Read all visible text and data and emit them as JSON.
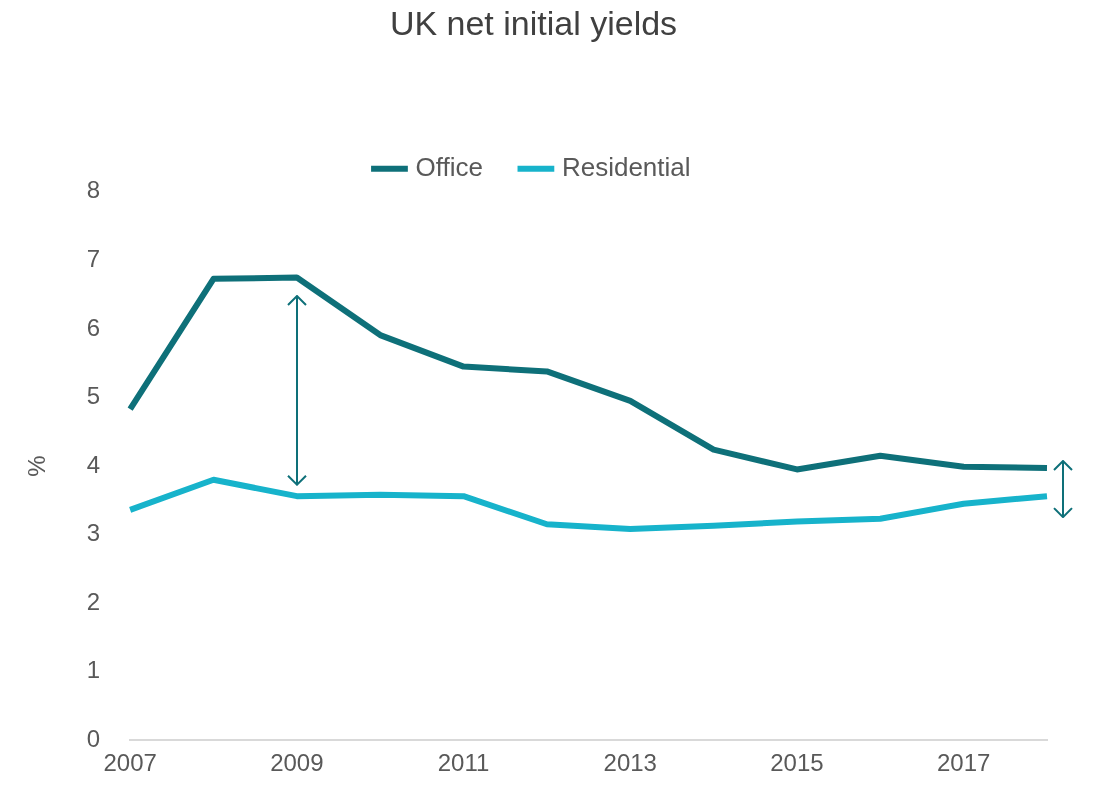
{
  "chart_data": {
    "type": "line",
    "title": "UK net initial yields",
    "ylabel": "%",
    "categories": [
      "2007",
      null,
      "2009",
      null,
      "2011",
      null,
      "2013",
      null,
      "2015",
      null,
      "2017",
      null
    ],
    "series": [
      {
        "name": "Office",
        "color": "#0e7079",
        "values": [
          4.83,
          6.73,
          6.75,
          5.91,
          5.45,
          5.38,
          4.95,
          4.24,
          3.95,
          4.15,
          3.99,
          3.97
        ]
      },
      {
        "name": "Residential",
        "color": "#17b3cb",
        "values": [
          3.36,
          3.8,
          3.56,
          3.58,
          3.56,
          3.15,
          3.08,
          3.13,
          3.19,
          3.23,
          3.45,
          3.56
        ]
      }
    ],
    "ylim": [
      0,
      8
    ],
    "yticks": [
      0,
      1,
      2,
      3,
      4,
      5,
      6,
      7,
      8
    ],
    "grid": false,
    "legend": "top",
    "marker": "none",
    "line_style": "solid"
  }
}
